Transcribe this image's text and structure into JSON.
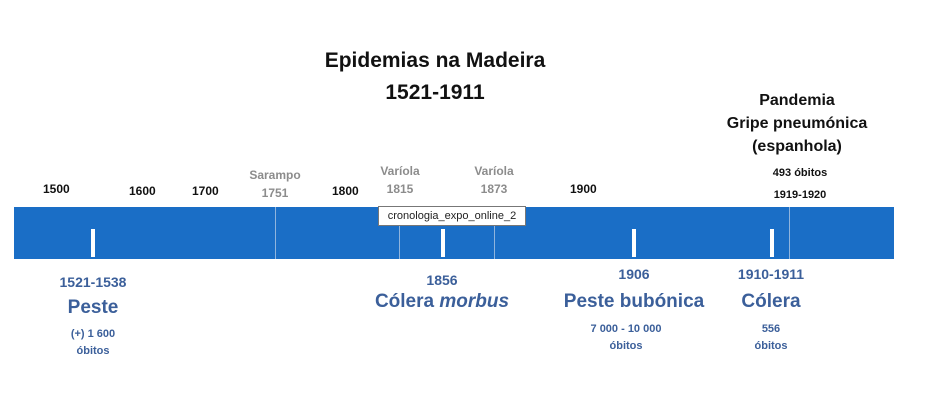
{
  "title": {
    "line1": "Epidemias na Madeira",
    "line2": "1521-1911"
  },
  "pandemic": {
    "line1": "Pandemia",
    "line2": "Gripe pneumónica",
    "line3": "(espanhola)",
    "deaths": "493 óbitos",
    "years": "1919-1920"
  },
  "axis_years": [
    "1500",
    "1600",
    "1700",
    "1800",
    "1900"
  ],
  "grey_markers": [
    {
      "name": "Sarampo",
      "year": "1751"
    },
    {
      "name": "Varíola",
      "year": "1815"
    },
    {
      "name": "Varíola",
      "year": "1873"
    }
  ],
  "tooltip": "cronologia_expo_online_2",
  "events": [
    {
      "date": "1521-1538",
      "name": "Peste",
      "note_line1": "(+) 1 600",
      "note_line2": "óbitos"
    },
    {
      "date": "1856",
      "name_regular": "Cólera ",
      "name_italic": "morbus"
    },
    {
      "date": "1906",
      "name": "Peste bubónica",
      "note_line1": "7 000 - 10 000",
      "note_line2": "óbitos"
    },
    {
      "date": "1910-1911",
      "name": "Cólera",
      "note_line1": "556",
      "note_line2": "óbitos"
    }
  ],
  "colors": {
    "band": "#1a6ec6",
    "event_text": "#3b5f9a",
    "grey_text": "#8c8c8c"
  }
}
